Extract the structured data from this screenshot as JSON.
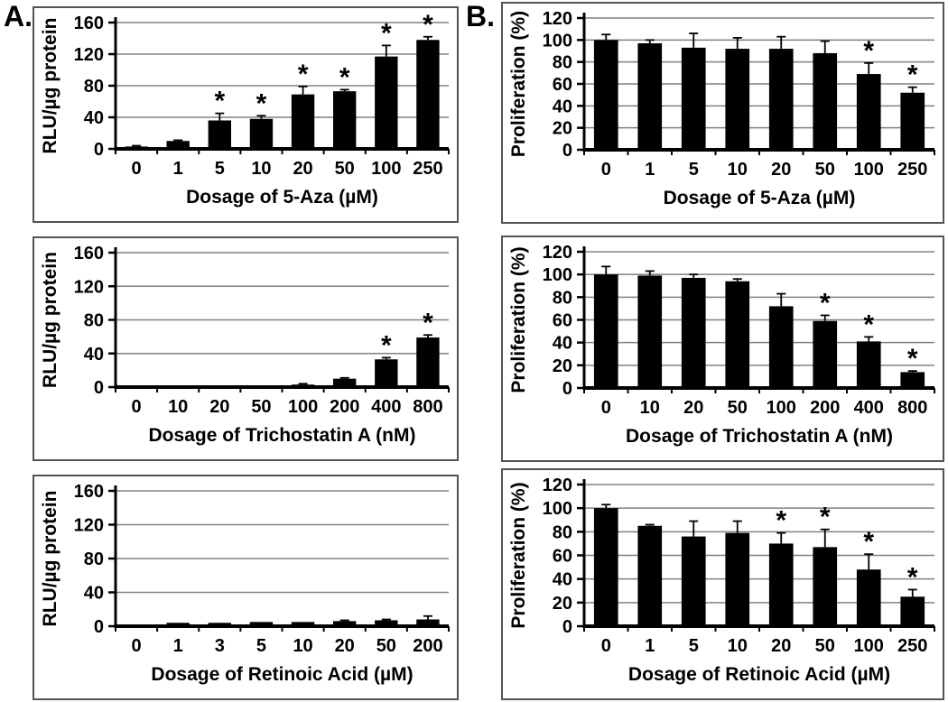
{
  "labels": {
    "a": "A.",
    "b": "B."
  },
  "style": {
    "bar_color": "#000000",
    "grid_color": "#808080",
    "axis_color": "#000000",
    "error_color": "#000000",
    "panel_border_color": "#545454",
    "background": "#ffffff",
    "significance_marker": "*"
  },
  "chart_data": [
    {
      "id": "aza-reporter",
      "type": "bar",
      "title": "",
      "ylabel": "RLU/µg protein",
      "xlabel": "Dosage of 5-Aza (µM)",
      "categories": [
        "0",
        "1",
        "5",
        "10",
        "20",
        "50",
        "100",
        "250"
      ],
      "values": [
        3,
        10,
        36,
        38,
        69,
        73,
        117,
        138
      ],
      "errors": [
        1,
        1,
        9,
        4,
        10,
        2,
        14,
        4
      ],
      "significant": [
        false,
        false,
        true,
        true,
        true,
        true,
        true,
        true
      ],
      "ylim": [
        0,
        160
      ],
      "yticks": [
        0,
        40,
        80,
        120,
        160
      ],
      "grid": true,
      "legend": null
    },
    {
      "id": "aza-proliferation",
      "type": "bar",
      "title": "",
      "ylabel": "Proliferation (%)",
      "xlabel": "Dosage of 5-Aza (µM)",
      "categories": [
        "0",
        "1",
        "5",
        "10",
        "20",
        "50",
        "100",
        "250"
      ],
      "values": [
        100,
        97,
        93,
        92,
        92,
        88,
        69,
        52
      ],
      "errors": [
        5,
        3,
        13,
        10,
        11,
        11,
        10,
        5
      ],
      "significant": [
        false,
        false,
        false,
        false,
        false,
        false,
        true,
        true
      ],
      "ylim": [
        0,
        120
      ],
      "yticks": [
        0,
        20,
        40,
        60,
        80,
        100,
        120
      ],
      "grid": true,
      "legend": null
    },
    {
      "id": "tsa-reporter",
      "type": "bar",
      "title": "",
      "ylabel": "RLU/µg protein",
      "xlabel": "Dosage of Trichostatin A (nM)",
      "categories": [
        "0",
        "10",
        "20",
        "50",
        "100",
        "200",
        "400",
        "800"
      ],
      "values": [
        2,
        0,
        0,
        2,
        3,
        10,
        33,
        59
      ],
      "errors": [
        0,
        0,
        0,
        0,
        1,
        1,
        2,
        3
      ],
      "significant": [
        false,
        false,
        false,
        false,
        false,
        false,
        true,
        true
      ],
      "ylim": [
        0,
        160
      ],
      "yticks": [
        0,
        40,
        80,
        120,
        160
      ],
      "grid": true,
      "legend": null
    },
    {
      "id": "tsa-proliferation",
      "type": "bar",
      "title": "",
      "ylabel": "Proliferation (%)",
      "xlabel": "Dosage of Trichostatin A (nM)",
      "categories": [
        "0",
        "10",
        "20",
        "50",
        "100",
        "200",
        "400",
        "800"
      ],
      "values": [
        100,
        99,
        97,
        94,
        72,
        59,
        41,
        14
      ],
      "errors": [
        7,
        4,
        3,
        2,
        11,
        5,
        4,
        1
      ],
      "significant": [
        false,
        false,
        false,
        false,
        false,
        true,
        true,
        true
      ],
      "ylim": [
        0,
        120
      ],
      "yticks": [
        0,
        20,
        40,
        60,
        80,
        100,
        120
      ],
      "grid": true,
      "legend": null
    },
    {
      "id": "ra-reporter",
      "type": "bar",
      "title": "",
      "ylabel": "RLU/µg protein",
      "xlabel": "Dosage of Retinoic Acid (µM)",
      "categories": [
        "0",
        "1",
        "3",
        "5",
        "10",
        "20",
        "50",
        "200"
      ],
      "values": [
        2,
        4,
        4,
        5,
        5,
        6,
        7,
        8
      ],
      "errors": [
        0,
        0,
        0,
        0,
        0,
        1,
        1,
        4
      ],
      "significant": [
        false,
        false,
        false,
        false,
        false,
        false,
        false,
        false
      ],
      "ylim": [
        0,
        160
      ],
      "yticks": [
        0,
        40,
        80,
        120,
        160
      ],
      "grid": true,
      "legend": null
    },
    {
      "id": "ra-proliferation",
      "type": "bar",
      "title": "",
      "ylabel": "Proliferation (%)",
      "xlabel": "Dosage of Retinoic Acid (µM)",
      "categories": [
        "0",
        "1",
        "5",
        "10",
        "20",
        "50",
        "100",
        "250"
      ],
      "values": [
        100,
        85,
        76,
        79,
        70,
        67,
        48,
        25
      ],
      "errors": [
        3,
        1,
        13,
        10,
        9,
        15,
        13,
        6
      ],
      "significant": [
        false,
        false,
        false,
        false,
        true,
        true,
        true,
        true
      ],
      "ylim": [
        0,
        120
      ],
      "yticks": [
        0,
        20,
        40,
        60,
        80,
        100,
        120
      ],
      "grid": true,
      "legend": null
    }
  ]
}
